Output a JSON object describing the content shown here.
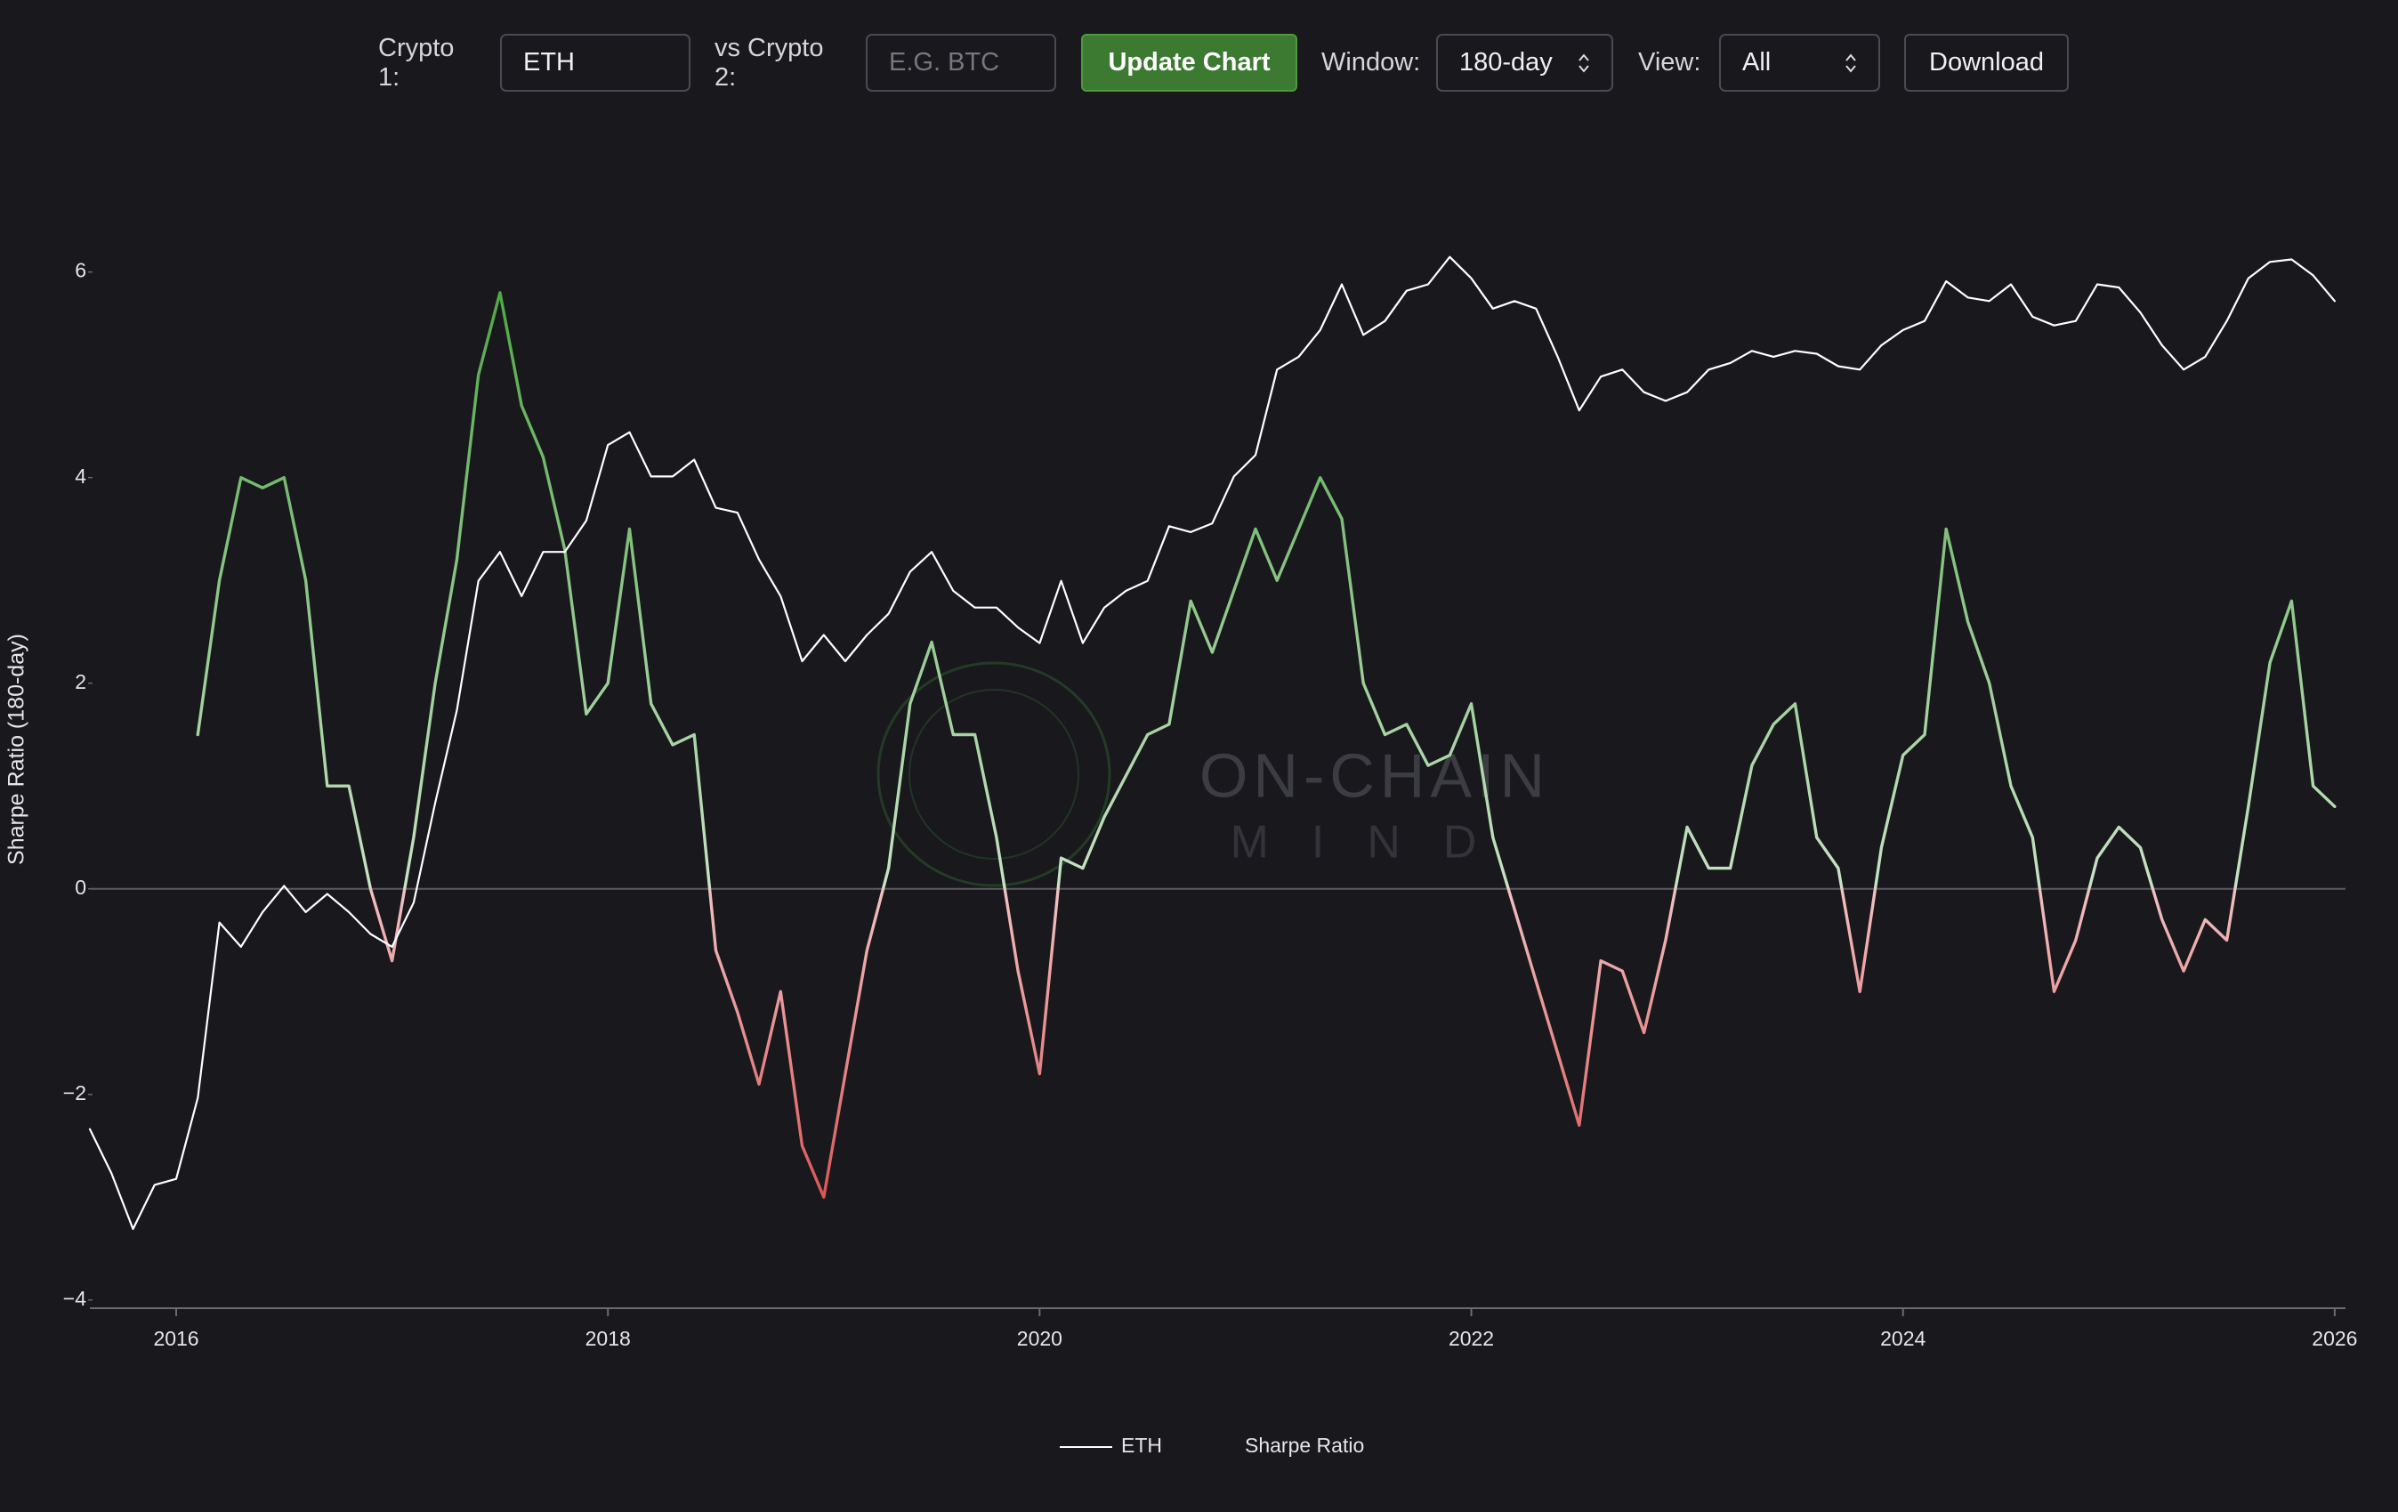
{
  "controls": {
    "crypto1_label": "Crypto 1:",
    "crypto1_value": "ETH",
    "crypto2_label": "vs Crypto 2:",
    "crypto2_placeholder": "E.G. BTC",
    "update_button": "Update Chart",
    "window_label": "Window:",
    "window_value": "180-day",
    "view_label": "View:",
    "view_value": "All",
    "download_button": "Download"
  },
  "watermark": {
    "title": "ON-CHAIN",
    "subtitle": "MIND"
  },
  "chart_data": {
    "type": "line",
    "y_label": "Sharpe Ratio (180-day)",
    "x": [
      2015.6,
      2015.7,
      2015.8,
      2015.9,
      2016.0,
      2016.1,
      2016.2,
      2016.3,
      2016.4,
      2016.5,
      2016.6,
      2016.7,
      2016.8,
      2016.9,
      2017.0,
      2017.1,
      2017.2,
      2017.3,
      2017.4,
      2017.5,
      2017.6,
      2017.7,
      2017.8,
      2017.9,
      2018.0,
      2018.1,
      2018.2,
      2018.3,
      2018.4,
      2018.5,
      2018.6,
      2018.7,
      2018.8,
      2018.9,
      2019.0,
      2019.1,
      2019.2,
      2019.3,
      2019.4,
      2019.5,
      2019.6,
      2019.7,
      2019.8,
      2019.9,
      2020.0,
      2020.1,
      2020.2,
      2020.3,
      2020.4,
      2020.5,
      2020.6,
      2020.7,
      2020.8,
      2020.9,
      2021.0,
      2021.1,
      2021.2,
      2021.3,
      2021.4,
      2021.5,
      2021.6,
      2021.7,
      2021.8,
      2021.9,
      2022.0,
      2022.1,
      2022.2,
      2022.3,
      2022.4,
      2022.5,
      2022.6,
      2022.7,
      2022.8,
      2022.9,
      2023.0,
      2023.1,
      2023.2,
      2023.3,
      2023.4,
      2023.5,
      2023.6,
      2023.7,
      2023.8,
      2023.9,
      2024.0,
      2024.1,
      2024.2,
      2024.3,
      2024.4,
      2024.5,
      2024.6,
      2024.7,
      2024.8,
      2024.9,
      2025.0,
      2025.1,
      2025.2,
      2025.3,
      2025.4,
      2025.5,
      2025.6,
      2025.7,
      2025.8,
      2025.9,
      2026.0
    ],
    "series": [
      {
        "name": "ETH",
        "color": "#ffffff",
        "axis": "y2",
        "values": [
          1.5,
          1.0,
          0.6,
          0.9,
          0.95,
          2.0,
          10,
          8,
          11,
          14,
          11,
          13,
          11,
          9,
          8,
          12,
          30,
          70,
          230,
          300,
          200,
          300,
          300,
          400,
          800,
          900,
          600,
          600,
          700,
          450,
          430,
          280,
          200,
          110,
          140,
          110,
          140,
          170,
          250,
          300,
          210,
          180,
          180,
          150,
          130,
          230,
          130,
          180,
          210,
          230,
          380,
          360,
          390,
          600,
          730,
          1600,
          1800,
          2300,
          3500,
          2200,
          2500,
          3300,
          3500,
          4500,
          3700,
          2800,
          3000,
          2800,
          1800,
          1100,
          1500,
          1600,
          1300,
          1200,
          1300,
          1600,
          1700,
          1900,
          1800,
          1900,
          1850,
          1650,
          1600,
          2000,
          2300,
          2500,
          3600,
          3100,
          3000,
          3500,
          2600,
          2400,
          2500,
          3500,
          3400,
          2700,
          2000,
          1600,
          1800,
          2500,
          3700,
          4300,
          4400,
          3800,
          3000
        ]
      },
      {
        "name": "Sharpe Ratio",
        "color_positive": "#45a33b",
        "color_negative": "#d32f2f",
        "values": [
          null,
          null,
          null,
          null,
          null,
          1.5,
          3.0,
          4.0,
          3.9,
          4.0,
          3.0,
          1.0,
          1.0,
          0.0,
          -0.7,
          0.5,
          2.0,
          3.2,
          5.0,
          5.8,
          4.7,
          4.2,
          3.3,
          1.7,
          2.0,
          3.5,
          1.8,
          1.4,
          1.5,
          -0.6,
          -1.2,
          -1.9,
          -1.0,
          -2.5,
          -3.0,
          -1.8,
          -0.6,
          0.2,
          1.8,
          2.4,
          1.5,
          1.5,
          0.5,
          -0.8,
          -1.8,
          0.3,
          0.2,
          0.7,
          1.1,
          1.5,
          1.6,
          2.8,
          2.3,
          2.9,
          3.5,
          3.0,
          3.5,
          4.0,
          3.6,
          2.0,
          1.5,
          1.6,
          1.2,
          1.3,
          1.8,
          0.5,
          -0.2,
          -0.9,
          -1.6,
          -2.3,
          -0.7,
          -0.8,
          -1.4,
          -0.5,
          0.6,
          0.2,
          0.2,
          1.2,
          1.6,
          1.8,
          0.5,
          0.2,
          -1.0,
          0.4,
          1.3,
          1.5,
          3.5,
          2.6,
          2.0,
          1.0,
          0.5,
          -1.0,
          -0.5,
          0.3,
          0.6,
          0.4,
          -0.3,
          -0.8,
          -0.3,
          -0.5,
          0.8,
          2.2,
          2.8,
          1.0,
          0.8
        ]
      }
    ],
    "xlim": [
      2015.6,
      2026.05
    ],
    "xticks": [
      2016,
      2018,
      2020,
      2022,
      2024,
      2026
    ],
    "ylim": [
      -4.08,
      6.3
    ],
    "yticks": [
      {
        "value": -4,
        "label": "−4"
      },
      {
        "value": -2,
        "label": "−2"
      },
      0,
      2,
      4,
      6
    ],
    "y2lim": [
      0.29,
      5200
    ],
    "y2_log": true,
    "zero_line": true,
    "legend": "bottom"
  }
}
